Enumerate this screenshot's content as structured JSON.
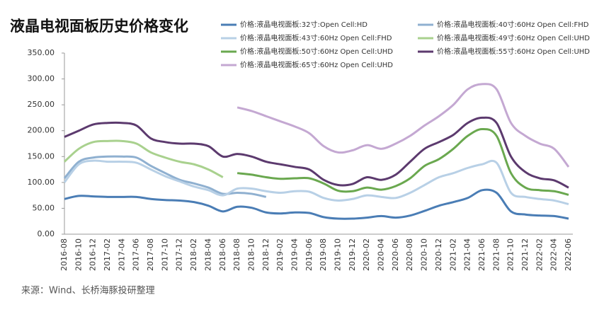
{
  "chart_data": {
    "type": "line",
    "title": "液晶电视面板历史价格变化",
    "source": "来源：Wind、长桥海豚投研整理",
    "categories": [
      "2016-08",
      "2016-10",
      "2016-12",
      "2017-02",
      "2017-04",
      "2017-06",
      "2017-08",
      "2017-10",
      "2017-12",
      "2018-02",
      "2018-04",
      "2018-06",
      "2018-08",
      "2018-10",
      "2018-12",
      "2019-02",
      "2019-04",
      "2019-06",
      "2019-08",
      "2019-10",
      "2019-12",
      "2020-02",
      "2020-04",
      "2020-06",
      "2020-08",
      "2020-10",
      "2020-12",
      "2021-02",
      "2021-04",
      "2021-06",
      "2021-08",
      "2021-10",
      "2021-12",
      "2022-02",
      "2022-04",
      "2022-06"
    ],
    "ylim": [
      0,
      350
    ],
    "yticks": [
      {
        "value": 0,
        "label": "0.00"
      },
      {
        "value": 50,
        "label": "50.00"
      },
      {
        "value": 100,
        "label": "100.00"
      },
      {
        "value": 150,
        "label": "150.00"
      },
      {
        "value": 200,
        "label": "200.00"
      },
      {
        "value": 250,
        "label": "250.00"
      },
      {
        "value": 300,
        "label": "300.00"
      },
      {
        "value": 350,
        "label": "350.00"
      }
    ],
    "series": [
      {
        "name": "价格:液晶电视面板:32寸:Open Cell:HD",
        "color": "#4a7db5",
        "values": [
          68,
          74,
          73,
          72,
          72,
          72,
          68,
          66,
          65,
          62,
          55,
          44,
          53,
          51,
          42,
          40,
          42,
          41,
          33,
          30,
          30,
          32,
          35,
          32,
          36,
          45,
          55,
          62,
          70,
          85,
          80,
          44,
          38,
          36,
          35,
          30
        ]
      },
      {
        "name": "价格:液晶电视面板:40寸:60Hz Open Cell:FHD",
        "color": "#8fb0d0",
        "values": [
          108,
          140,
          148,
          150,
          150,
          148,
          132,
          118,
          105,
          98,
          90,
          78,
          80,
          78,
          72,
          null,
          null,
          null,
          null,
          null,
          null,
          null,
          null,
          null,
          null,
          null,
          null,
          null,
          null,
          null,
          null,
          null,
          null,
          null,
          null,
          null
        ]
      },
      {
        "name": "价格:液晶电视面板:43寸:60Hz Open Cell:FHD",
        "color": "#b8d0e6",
        "values": [
          100,
          135,
          142,
          140,
          140,
          138,
          125,
          112,
          102,
          92,
          85,
          75,
          88,
          88,
          83,
          80,
          83,
          82,
          70,
          65,
          68,
          75,
          72,
          70,
          80,
          95,
          110,
          118,
          128,
          135,
          138,
          80,
          72,
          68,
          65,
          58
        ]
      },
      {
        "name": "价格:液晶电视面板:49寸:60Hz Open Cell:UHD",
        "color": "#a9d18e",
        "values": [
          140,
          165,
          178,
          180,
          180,
          175,
          158,
          148,
          140,
          135,
          125,
          110,
          null,
          null,
          null,
          null,
          null,
          null,
          null,
          null,
          null,
          null,
          null,
          null,
          null,
          null,
          null,
          null,
          null,
          null,
          null,
          null,
          null,
          null,
          null,
          null
        ]
      },
      {
        "name": "价格:液晶电视面板:50寸:60Hz Open Cell:UHD",
        "color": "#6aa84f",
        "values": [
          null,
          null,
          null,
          null,
          null,
          null,
          null,
          null,
          null,
          null,
          null,
          null,
          118,
          115,
          110,
          107,
          108,
          108,
          98,
          84,
          83,
          90,
          86,
          93,
          108,
          132,
          145,
          165,
          190,
          203,
          190,
          118,
          90,
          85,
          83,
          76
        ]
      },
      {
        "name": "价格:液晶电视面板:55寸:60Hz Open Cell:UHD",
        "color": "#5c3a6e",
        "values": [
          188,
          200,
          212,
          215,
          215,
          210,
          185,
          178,
          175,
          175,
          170,
          150,
          155,
          150,
          140,
          135,
          130,
          125,
          105,
          95,
          97,
          110,
          105,
          115,
          140,
          165,
          178,
          192,
          215,
          225,
          215,
          150,
          120,
          108,
          104,
          90
        ]
      },
      {
        "name": "价格:液晶电视面板:65寸:60Hz Open Cell:UHD",
        "color": "#c4a8d2",
        "values": [
          null,
          null,
          null,
          null,
          null,
          null,
          null,
          null,
          null,
          null,
          null,
          null,
          245,
          238,
          228,
          218,
          208,
          195,
          170,
          158,
          162,
          172,
          165,
          175,
          190,
          210,
          228,
          250,
          280,
          290,
          280,
          215,
          190,
          175,
          165,
          130
        ]
      }
    ]
  }
}
